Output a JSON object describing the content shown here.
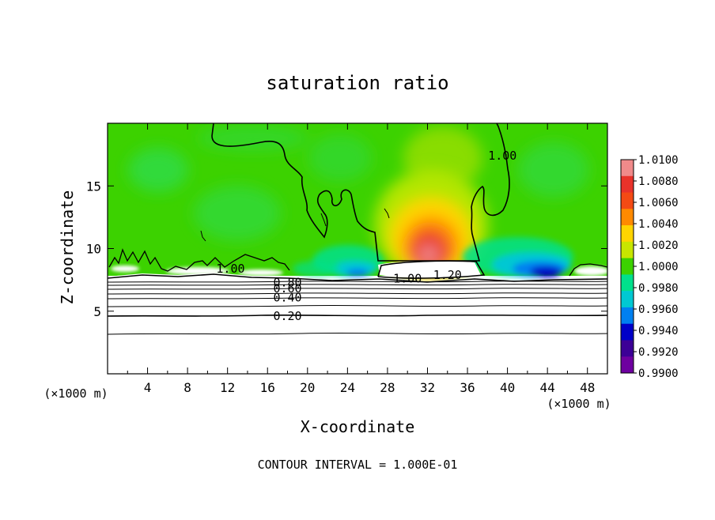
{
  "chart_data": {
    "type": "heatmap",
    "title": "saturation ratio",
    "xlabel": "X-coordinate",
    "ylabel": "Z-coordinate",
    "x_unit_left": "(×1000 m)",
    "x_unit_right": "(×1000 m)",
    "xlim": [
      0,
      50
    ],
    "ylim": [
      0,
      20
    ],
    "xticks": [
      4,
      8,
      12,
      16,
      20,
      24,
      28,
      32,
      36,
      40,
      44,
      48
    ],
    "yticks": [
      5,
      10,
      15
    ],
    "footer": "CONTOUR INTERVAL = 1.000E-01",
    "colorbar": {
      "ticks": [
        "1.0100",
        "1.0080",
        "1.0060",
        "1.0040",
        "1.0020",
        "1.0000",
        "0.9980",
        "0.9960",
        "0.9940",
        "0.9920",
        "0.9900"
      ],
      "colors": [
        "#f08a8a",
        "#e8322a",
        "#f44a14",
        "#ff8a00",
        "#ffd400",
        "#c8e600",
        "#3cd200",
        "#00e08c",
        "#00c8d2",
        "#0080f0",
        "#0000c8",
        "#3c0096",
        "#6e00a0"
      ]
    },
    "contour_labels": [
      {
        "text": "0.20",
        "x": 18.0,
        "z": 4.6
      },
      {
        "text": "0.40",
        "x": 18.0,
        "z": 6.1
      },
      {
        "text": "0.60",
        "x": 18.0,
        "z": 6.8
      },
      {
        "text": "0.80",
        "x": 18.0,
        "z": 7.3
      },
      {
        "text": "1.00",
        "x": 12.3,
        "z": 8.4
      },
      {
        "text": "1.00",
        "x": 30.0,
        "z": 7.6
      },
      {
        "text": "1.20",
        "x": 34.0,
        "z": 7.9
      },
      {
        "text": "1.00",
        "x": 39.5,
        "z": 17.4
      }
    ]
  }
}
